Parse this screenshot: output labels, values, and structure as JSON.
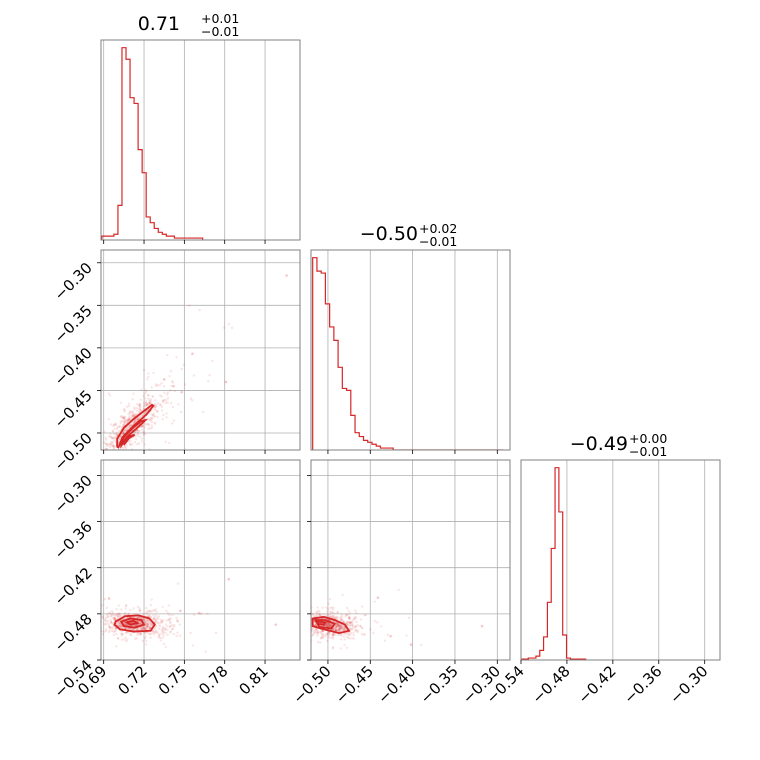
{
  "figure": {
    "colors": {
      "accent": "#d62728",
      "grid": "#b0b0b0",
      "frame": "#808080"
    }
  },
  "titles": {
    "p0": {
      "median": "0.71",
      "plus": "+0.01",
      "minus": "−0.01"
    },
    "p1": {
      "median": "−0.50",
      "plus": "+0.02",
      "minus": "−0.01"
    },
    "p2": {
      "median": "−0.49",
      "plus": "+0.00",
      "minus": "−0.01"
    }
  },
  "chart_data": [
    {
      "type": "histogram",
      "panel": "p0-marginal",
      "title": "0.71 (+0.01 / −0.01)",
      "xlim": [
        0.688,
        0.836
      ],
      "bin_edges": [
        0.6886,
        0.6916,
        0.6946,
        0.6976,
        0.7006,
        0.7036,
        0.7066,
        0.7096,
        0.7126,
        0.7156,
        0.7186,
        0.7216,
        0.7246,
        0.7276,
        0.7306,
        0.7336,
        0.7366,
        0.7396,
        0.7426,
        0.7456,
        0.7486,
        0.7516,
        0.7546,
        0.7576,
        0.7606,
        0.7636
      ],
      "counts": [
        0.02,
        0.02,
        0.02,
        0.03,
        0.18,
        1.0,
        0.94,
        0.74,
        0.71,
        0.47,
        0.35,
        0.12,
        0.09,
        0.06,
        0.04,
        0.03,
        0.02,
        0.02,
        0.01,
        0.01,
        0.01,
        0.01,
        0.01,
        0.01,
        0.01
      ]
    },
    {
      "type": "scatter",
      "panel": "p0-vs-p1",
      "xlim": [
        0.688,
        0.836
      ],
      "ylim": [
        -0.52,
        -0.285
      ],
      "xticks": [
        0.69,
        0.72,
        0.75,
        0.78,
        0.81
      ],
      "yticks": [
        "−0.30",
        "−0.35",
        "−0.40",
        "−0.45",
        "−0.50"
      ],
      "yticks_values": [
        -0.3,
        -0.35,
        -0.4,
        -0.45,
        -0.5
      ],
      "contours": [
        [
          [
            0.701,
            -0.517
          ],
          [
            0.704,
            -0.505
          ],
          [
            0.712,
            -0.492
          ],
          [
            0.722,
            -0.478
          ],
          [
            0.727,
            -0.468
          ],
          [
            0.726,
            -0.467
          ],
          [
            0.72,
            -0.474
          ],
          [
            0.712,
            -0.484
          ],
          [
            0.705,
            -0.494
          ],
          [
            0.7,
            -0.507
          ],
          [
            0.7,
            -0.516
          ]
        ],
        [
          [
            0.703,
            -0.515
          ],
          [
            0.707,
            -0.505
          ],
          [
            0.715,
            -0.494
          ],
          [
            0.721,
            -0.485
          ],
          [
            0.718,
            -0.486
          ],
          [
            0.711,
            -0.495
          ],
          [
            0.705,
            -0.505
          ],
          [
            0.703,
            -0.513
          ]
        ],
        [
          [
            0.705,
            -0.514
          ],
          [
            0.709,
            -0.506
          ],
          [
            0.713,
            -0.502
          ],
          [
            0.709,
            -0.504
          ],
          [
            0.706,
            -0.511
          ]
        ]
      ],
      "outliers": [
        [
          0.826,
          -0.315
        ],
        [
          0.756,
          -0.407
        ],
        [
          0.781,
          -0.44
        ],
        [
          0.742,
          -0.445
        ],
        [
          0.735,
          -0.437
        ],
        [
          0.748,
          -0.452
        ]
      ]
    },
    {
      "type": "histogram",
      "panel": "p1-marginal",
      "title": "−0.50 (+0.02 / −0.01)",
      "xlim": [
        -0.52,
        -0.285
      ],
      "bin_edges": [
        -0.518,
        -0.513,
        -0.508,
        -0.503,
        -0.498,
        -0.493,
        -0.488,
        -0.483,
        -0.478,
        -0.473,
        -0.468,
        -0.463,
        -0.458,
        -0.453,
        -0.448,
        -0.443,
        -0.438,
        -0.433,
        -0.428,
        -0.423,
        -0.418,
        -0.413,
        -0.408,
        -0.403,
        -0.398,
        -0.393,
        -0.388,
        -0.383,
        -0.378,
        -0.373,
        -0.368,
        -0.363,
        -0.358,
        -0.353,
        -0.348,
        -0.343,
        -0.338,
        -0.333,
        -0.328,
        -0.323,
        -0.318,
        -0.313,
        -0.308,
        -0.303,
        -0.298,
        -0.293
      ],
      "counts": [
        1.0,
        0.93,
        0.92,
        0.76,
        0.64,
        0.57,
        0.43,
        0.32,
        0.31,
        0.18,
        0.09,
        0.07,
        0.05,
        0.04,
        0.03,
        0.02,
        0.01,
        0.01,
        0.01,
        0.0,
        0.0,
        0.0,
        0.0,
        0.0,
        0.0,
        0.0,
        0.0,
        0.0,
        0.0,
        0.0,
        0.0,
        0.0,
        0.0,
        0.0,
        0.0,
        0.0,
        0.0,
        0.0,
        0.0,
        0.0,
        0.0,
        0.0,
        0.0,
        0.0,
        0.0
      ]
    },
    {
      "type": "scatter",
      "panel": "p0-vs-p2",
      "xlim": [
        0.688,
        0.836
      ],
      "ylim": [
        -0.54,
        -0.28
      ],
      "xticks": [
        "0.69",
        "0.72",
        "0.75",
        "0.78",
        "0.81"
      ],
      "xticks_values": [
        0.69,
        0.72,
        0.75,
        0.78,
        0.81
      ],
      "yticks": [
        "−0.30",
        "−0.36",
        "−0.42",
        "−0.48",
        "−0.54"
      ],
      "yticks_values": [
        -0.3,
        -0.36,
        -0.42,
        -0.48,
        -0.54
      ],
      "contours": [
        [
          [
            0.699,
            -0.49
          ],
          [
            0.706,
            -0.483
          ],
          [
            0.716,
            -0.482
          ],
          [
            0.724,
            -0.486
          ],
          [
            0.728,
            -0.494
          ],
          [
            0.725,
            -0.502
          ],
          [
            0.712,
            -0.503
          ],
          [
            0.702,
            -0.5
          ],
          [
            0.698,
            -0.494
          ]
        ],
        [
          [
            0.703,
            -0.49
          ],
          [
            0.71,
            -0.486
          ],
          [
            0.718,
            -0.488
          ],
          [
            0.72,
            -0.494
          ],
          [
            0.713,
            -0.498
          ],
          [
            0.705,
            -0.496
          ]
        ],
        [
          [
            0.707,
            -0.491
          ],
          [
            0.712,
            -0.489
          ],
          [
            0.715,
            -0.492
          ],
          [
            0.71,
            -0.494
          ]
        ]
      ],
      "outliers": [
        [
          0.783,
          -0.435
        ],
        [
          0.818,
          -0.494
        ],
        [
          0.747,
          -0.476
        ],
        [
          0.761,
          -0.479
        ],
        [
          0.694,
          -0.46
        ]
      ]
    },
    {
      "type": "scatter",
      "panel": "p1-vs-p2",
      "xlim": [
        -0.52,
        -0.285
      ],
      "ylim": [
        -0.54,
        -0.28
      ],
      "xticks": [
        "−0.50",
        "−0.45",
        "−0.40",
        "−0.35",
        "−0.30"
      ],
      "xticks_values": [
        -0.5,
        -0.45,
        -0.4,
        -0.35,
        -0.3
      ],
      "contours": [
        [
          [
            -0.518,
            -0.486
          ],
          [
            -0.505,
            -0.484
          ],
          [
            -0.492,
            -0.488
          ],
          [
            -0.48,
            -0.494
          ],
          [
            -0.475,
            -0.502
          ],
          [
            -0.487,
            -0.505
          ],
          [
            -0.505,
            -0.5
          ],
          [
            -0.518,
            -0.496
          ]
        ],
        [
          [
            -0.515,
            -0.488
          ],
          [
            -0.503,
            -0.488
          ],
          [
            -0.492,
            -0.493
          ],
          [
            -0.496,
            -0.499
          ],
          [
            -0.51,
            -0.497
          ]
        ],
        [
          [
            -0.512,
            -0.49
          ],
          [
            -0.503,
            -0.491
          ],
          [
            -0.505,
            -0.494
          ],
          [
            -0.512,
            -0.493
          ]
        ]
      ],
      "outliers": [
        [
          -0.441,
          -0.459
        ],
        [
          -0.318,
          -0.496
        ],
        [
          -0.402,
          -0.52
        ],
        [
          -0.426,
          -0.509
        ]
      ]
    },
    {
      "type": "histogram",
      "panel": "p2-marginal",
      "title": "−0.49 (+0.00 / −0.01)",
      "xlim": [
        -0.54,
        -0.28
      ],
      "xticks": [
        "−0.54",
        "−0.48",
        "−0.42",
        "−0.36",
        "−0.30"
      ],
      "xticks_values": [
        -0.54,
        -0.48,
        -0.42,
        -0.36,
        -0.3
      ],
      "bin_edges": [
        -0.5405,
        -0.5355,
        -0.5305,
        -0.5255,
        -0.5205,
        -0.5155,
        -0.5105,
        -0.5055,
        -0.5005,
        -0.4955,
        -0.4905,
        -0.4855,
        -0.4805,
        -0.4755,
        -0.4705,
        -0.4655,
        -0.4605,
        -0.4555
      ],
      "counts": [
        0.005,
        0.005,
        0.01,
        0.01,
        0.02,
        0.05,
        0.12,
        0.3,
        0.58,
        1.0,
        0.77,
        0.13,
        0.01,
        0.005,
        0.005,
        0.005,
        0.005
      ]
    }
  ]
}
